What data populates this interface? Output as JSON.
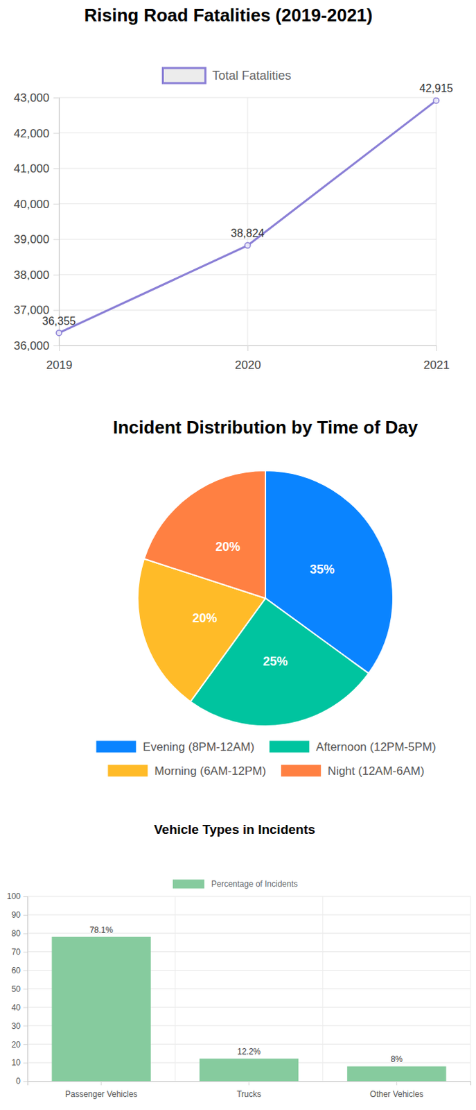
{
  "chart_data": [
    {
      "type": "line",
      "title": "Rising Road Fatalities (2019-2021)",
      "categories": [
        "2019",
        "2020",
        "2021"
      ],
      "series": [
        {
          "name": "Total Fatalities",
          "color": "#8a7fd6",
          "marker": "circle",
          "values": [
            36355,
            38824,
            42915
          ],
          "value_labels": [
            "36,355",
            "38,824",
            "42,915"
          ]
        }
      ],
      "ylim": [
        36000,
        43000
      ],
      "yticks": [
        {
          "value": 36000,
          "label": "36,000"
        },
        {
          "value": 37000,
          "label": "37,000"
        },
        {
          "value": 38000,
          "label": "38,000"
        },
        {
          "value": 39000,
          "label": "39,000"
        },
        {
          "value": 40000,
          "label": "40,000"
        },
        {
          "value": 41000,
          "label": "41,000"
        },
        {
          "value": 42000,
          "label": "42,000"
        },
        {
          "value": 43000,
          "label": "43,000"
        }
      ],
      "grid": true,
      "legend": "top",
      "data_labels": true
    },
    {
      "type": "pie",
      "title": "Incident Distribution by Time of Day",
      "categories": [
        "Evening (8PM-12AM)",
        "Afternoon (12PM-5PM)",
        "Morning (6AM-12PM)",
        "Night (12AM-6AM)"
      ],
      "values": [
        35,
        25,
        20,
        20
      ],
      "value_labels": [
        "35%",
        "25%",
        "20%",
        "20%"
      ],
      "colors": [
        "#0a84ff",
        "#00c49f",
        "#ffbb28",
        "#ff8042"
      ],
      "legend": "bottom",
      "data_labels": true
    },
    {
      "type": "bar",
      "title": "Vehicle Types in Incidents",
      "categories": [
        "Passenger Vehicles",
        "Trucks",
        "Other Vehicles"
      ],
      "series": [
        {
          "name": "Percentage of Incidents",
          "color": "#86cb9e",
          "values": [
            78.1,
            12.2,
            8
          ],
          "value_labels": [
            "78.1%",
            "12.2%",
            "8%"
          ]
        }
      ],
      "ylim": [
        0,
        100
      ],
      "yticks": [
        0,
        10,
        20,
        30,
        40,
        50,
        60,
        70,
        80,
        90,
        100
      ],
      "grid": true,
      "legend": "top",
      "data_labels": true
    }
  ]
}
